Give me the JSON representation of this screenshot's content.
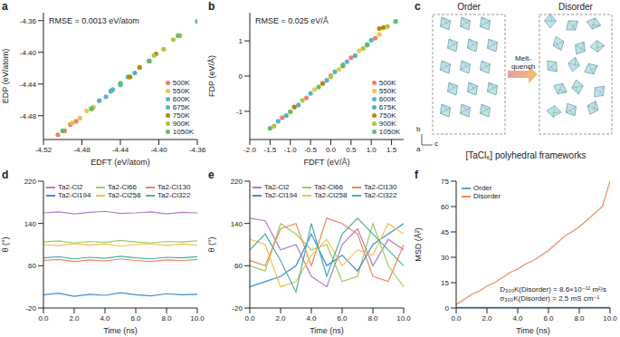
{
  "chart_data": [
    {
      "label": "a",
      "type": "scatter",
      "xlabel": "EDFT (eV/atom)",
      "ylabel": "EDP (eV/atom)",
      "annotations": [
        "RMSE = 0.0013 eV/atom"
      ],
      "legend": "lower right",
      "xlim": [
        -4.52,
        -4.36
      ],
      "xticks": [
        -4.52,
        -4.48,
        -4.44,
        {
          "value": -4.4,
          "label": "-4.40"
        },
        -4.36
      ],
      "ylim": [
        -4.51,
        -4.35
      ],
      "yticks": [
        -4.48,
        -4.44,
        {
          "value": -4.4,
          "label": "-4.40"
        },
        -4.36
      ],
      "series": [
        {
          "name": "500K",
          "color": "#f08070",
          "x": [
            -4.505,
            -4.498,
            -4.492,
            -4.486
          ],
          "values": [
            -4.504,
            -4.499,
            -4.491,
            -4.487
          ]
        },
        {
          "name": "550K",
          "color": "#e6c84a",
          "x": [
            -4.49,
            -4.482,
            -4.475,
            -4.468
          ],
          "values": [
            -4.489,
            -4.483,
            -4.474,
            -4.469
          ]
        },
        {
          "name": "600K",
          "color": "#66aadd",
          "x": [
            -4.47,
            -4.462,
            -4.455,
            -4.448
          ],
          "values": [
            -4.471,
            -4.461,
            -4.456,
            -4.447
          ]
        },
        {
          "name": "675K",
          "color": "#4db8b8",
          "x": [
            -4.45,
            -4.44,
            -4.432,
            -4.425
          ],
          "values": [
            -4.449,
            -4.441,
            -4.431,
            -4.426
          ]
        },
        {
          "name": "750K",
          "color": "#b8860b",
          "x": [
            -4.43,
            -4.42,
            -4.41,
            -4.403
          ],
          "values": [
            -4.431,
            -4.419,
            -4.411,
            -4.402
          ]
        },
        {
          "name": "900K",
          "color": "#a8c840",
          "x": [
            -4.405,
            -4.395,
            -4.385,
            -4.378
          ],
          "values": [
            -4.404,
            -4.396,
            -4.384,
            -4.379
          ]
        },
        {
          "name": "1050K",
          "color": "#66bb6a",
          "x": [
            -4.5,
            -4.47,
            -4.44,
            -4.41,
            -4.38,
            -4.36
          ],
          "values": [
            -4.499,
            -4.471,
            -4.439,
            -4.411,
            -4.379,
            -4.361
          ]
        }
      ]
    },
    {
      "label": "b",
      "type": "scatter",
      "xlabel": "FDFT (eV/Å)",
      "ylabel": "FDP (eV/Å)",
      "annotations": [
        "RMSE = 0.025 eV/Å"
      ],
      "legend": "lower right",
      "xlim": [
        -2.0,
        1.8
      ],
      "xticks": [
        {
          "value": -2,
          "label": "-2.0"
        },
        -1.5,
        {
          "value": -1,
          "label": "-1.0"
        },
        -0.5,
        {
          "value": 0,
          "label": "0.0"
        },
        0.5,
        {
          "value": 1,
          "label": "1.0"
        },
        1.5
      ],
      "ylim": [
        -1.8,
        1.8
      ],
      "yticks": [
        -1,
        0,
        1
      ],
      "series": [
        {
          "name": "500K",
          "color": "#f08070",
          "x": [
            -1.2,
            -0.6,
            0.0,
            0.5,
            1.1
          ],
          "values": [
            -1.18,
            -0.62,
            0.01,
            0.52,
            1.08
          ]
        },
        {
          "name": "550K",
          "color": "#e6c84a",
          "x": [
            -1.0,
            -0.4,
            0.2,
            0.7,
            1.2
          ],
          "values": [
            -1.02,
            -0.38,
            0.19,
            0.72,
            1.18
          ]
        },
        {
          "name": "600K",
          "color": "#66aadd",
          "x": [
            -1.3,
            -0.8,
            -0.1,
            0.4,
            0.9
          ],
          "values": [
            -1.28,
            -0.82,
            -0.12,
            0.41,
            0.88
          ]
        },
        {
          "name": "675K",
          "color": "#4db8b8",
          "x": [
            -1.1,
            -0.5,
            0.1,
            0.6,
            1.0
          ],
          "values": [
            -1.12,
            -0.49,
            0.12,
            0.58,
            1.02
          ]
        },
        {
          "name": "750K",
          "color": "#b8860b",
          "x": [
            -0.9,
            -0.2,
            0.3,
            1.2,
            1.3
          ],
          "values": [
            -0.88,
            -0.21,
            0.29,
            1.35,
            1.38
          ]
        },
        {
          "name": "900K",
          "color": "#a8c840",
          "x": [
            -1.4,
            -0.7,
            0.0,
            0.8,
            1.4
          ],
          "values": [
            -1.42,
            -0.69,
            -0.02,
            0.79,
            1.41
          ]
        },
        {
          "name": "1050K",
          "color": "#66bb6a",
          "x": [
            -1.5,
            -1.0,
            -0.3,
            0.3,
            0.9,
            1.6
          ],
          "values": [
            -1.48,
            -1.01,
            -0.31,
            0.32,
            0.9,
            1.55
          ]
        }
      ]
    },
    {
      "label": "d",
      "type": "line",
      "xlabel": "Time (ns)",
      "ylabel": "θ (°)",
      "legend": "upper",
      "xlim": [
        0,
        10
      ],
      "xticks": [
        {
          "value": 0,
          "label": "0.0"
        },
        {
          "value": 2,
          "label": "2.0"
        },
        {
          "value": 4,
          "label": "4.0"
        },
        {
          "value": 6,
          "label": "6.0"
        },
        {
          "value": 8,
          "label": "8.0"
        },
        {
          "value": 10,
          "label": "10.0"
        }
      ],
      "ylim": [
        -20,
        220
      ],
      "yticks": [
        -20,
        60,
        140,
        220
      ],
      "x": [
        0,
        1,
        2,
        3,
        4,
        5,
        6,
        7,
        8,
        9,
        10
      ],
      "series": [
        {
          "name": "Ta2-Cl2",
          "color": "#b07cc6",
          "values": [
            160,
            162,
            158,
            161,
            163,
            159,
            160,
            162,
            158,
            161,
            160
          ]
        },
        {
          "name": "Ta2-Cl66",
          "color": "#9acd5a",
          "values": [
            105,
            107,
            103,
            106,
            104,
            108,
            105,
            103,
            106,
            105,
            107
          ]
        },
        {
          "name": "Ta2-Cl130",
          "color": "#f2845c",
          "values": [
            70,
            72,
            68,
            71,
            69,
            73,
            70,
            68,
            71,
            70,
            72
          ]
        },
        {
          "name": "Ta2-Cl194",
          "color": "#3d8fd1",
          "values": [
            5,
            8,
            2,
            6,
            4,
            9,
            5,
            3,
            7,
            5,
            6
          ]
        },
        {
          "name": "Ta2-Cl258",
          "color": "#f2c14e",
          "values": [
            100,
            98,
            102,
            99,
            101,
            97,
            100,
            102,
            98,
            101,
            99
          ]
        },
        {
          "name": "Ta2-Cl322",
          "color": "#4ab0a6",
          "values": [
            75,
            77,
            73,
            76,
            74,
            78,
            75,
            73,
            76,
            75,
            77
          ]
        }
      ]
    },
    {
      "label": "e",
      "type": "line",
      "xlabel": "Time (ns)",
      "ylabel": "θ (°)",
      "legend": "upper",
      "xlim": [
        0,
        10
      ],
      "xticks": [
        {
          "value": 0,
          "label": "0.0"
        },
        {
          "value": 2,
          "label": "2.0"
        },
        {
          "value": 4,
          "label": "4.0"
        },
        {
          "value": 6,
          "label": "6.0"
        },
        {
          "value": 8,
          "label": "8.0"
        },
        {
          "value": 10,
          "label": "10.0"
        }
      ],
      "ylim": [
        -20,
        220
      ],
      "yticks": [
        -20,
        60,
        140,
        220
      ],
      "x": [
        0,
        1,
        2,
        3,
        4,
        5,
        6,
        7,
        8,
        9,
        10
      ],
      "series": [
        {
          "name": "Ta2-Cl2",
          "color": "#b07cc6",
          "values": [
            150,
            145,
            90,
            100,
            40,
            20,
            100,
            130,
            60,
            110,
            90
          ]
        },
        {
          "name": "Ta2-Cl66",
          "color": "#9acd5a",
          "values": [
            60,
            50,
            140,
            120,
            90,
            100,
            30,
            40,
            140,
            60,
            20
          ]
        },
        {
          "name": "Ta2-Cl130",
          "color": "#f2845c",
          "values": [
            70,
            60,
            130,
            140,
            60,
            150,
            140,
            120,
            40,
            30,
            100
          ]
        },
        {
          "name": "Ta2-Cl194",
          "color": "#3d8fd1",
          "values": [
            20,
            30,
            40,
            60,
            120,
            60,
            80,
            50,
            100,
            120,
            140
          ]
        },
        {
          "name": "Ta2-Cl258",
          "color": "#f2c14e",
          "values": [
            110,
            100,
            20,
            30,
            80,
            110,
            60,
            90,
            80,
            140,
            120
          ]
        },
        {
          "name": "Ta2-Cl322",
          "color": "#4ab0a6",
          "values": [
            90,
            120,
            70,
            10,
            140,
            40,
            120,
            150,
            120,
            90,
            60
          ]
        }
      ]
    },
    {
      "label": "f",
      "type": "line",
      "xlabel": "Time (ns)",
      "ylabel": "MSD (Å²)",
      "legend": "upper left",
      "annotations": [
        "D₃₀₀K(Disorder) = 8.6×10⁻¹² m²/s",
        "σ₃₀₀K(Disorder) = 2.5 mS cm⁻¹"
      ],
      "xlim": [
        0,
        10
      ],
      "xticks": [
        {
          "value": 0,
          "label": "0.0"
        },
        {
          "value": 2,
          "label": "2.0"
        },
        {
          "value": 4,
          "label": "4.0"
        },
        {
          "value": 6,
          "label": "6.0"
        },
        {
          "value": 8,
          "label": "8.0"
        },
        {
          "value": 10,
          "label": "10.0"
        }
      ],
      "ylim": [
        0,
        75
      ],
      "yticks": [
        0,
        15,
        30,
        45,
        60,
        75
      ],
      "x": [
        0,
        0.5,
        1,
        1.5,
        2,
        2.5,
        3,
        3.5,
        4,
        4.5,
        5,
        5.5,
        6,
        6.5,
        7,
        7.5,
        8,
        8.5,
        9,
        9.5,
        10
      ],
      "series": [
        {
          "name": "Order",
          "color": "#5ba3c9",
          "values": [
            0.3,
            0.3,
            0.3,
            0.3,
            0.3,
            0.3,
            0.3,
            0.3,
            0.3,
            0.3,
            0.3,
            0.3,
            0.3,
            0.3,
            0.3,
            0.3,
            0.3,
            0.3,
            0.3,
            0.3,
            0.3
          ]
        },
        {
          "name": "Disorder",
          "color": "#f08a5d",
          "values": [
            2,
            5,
            8,
            10,
            13,
            15,
            18,
            21,
            23,
            26,
            28,
            31,
            34,
            38,
            42,
            45,
            48,
            52,
            56,
            60,
            75
          ]
        }
      ]
    }
  ],
  "diagram": {
    "label": "c",
    "left_title": "Order",
    "right_title": "Disorder",
    "arrow_label": "Melt-quench",
    "caption": "[TaCl₆] polyhedral frameworks",
    "axes": [
      "b",
      "c",
      "a"
    ]
  }
}
